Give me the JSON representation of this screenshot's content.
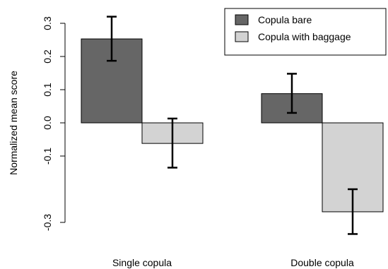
{
  "chart_data": {
    "type": "bar",
    "categories": [
      "Single copula",
      "Double copula"
    ],
    "series": [
      {
        "name": "Copula bare",
        "values": [
          0.253,
          0.088
        ],
        "err_low": [
          0.187,
          0.03
        ],
        "err_high": [
          0.32,
          0.148
        ],
        "color": "#666666"
      },
      {
        "name": "Copula with baggage",
        "values": [
          -0.062,
          -0.268
        ],
        "err_low": [
          -0.135,
          -0.335
        ],
        "err_high": [
          0.013,
          -0.2
        ],
        "color": "#d3d3d3"
      }
    ],
    "ylabel": "Normalized mean score",
    "yticks": [
      -0.3,
      -0.1,
      0.0,
      0.1,
      0.2,
      0.3
    ],
    "ytick_labels": [
      "-0.3",
      "-0.1",
      "0.0",
      "0.1",
      "0.2",
      "0.3"
    ],
    "ylim": [
      -0.34,
      0.32
    ],
    "legend_position": "top-right",
    "grid": false
  }
}
